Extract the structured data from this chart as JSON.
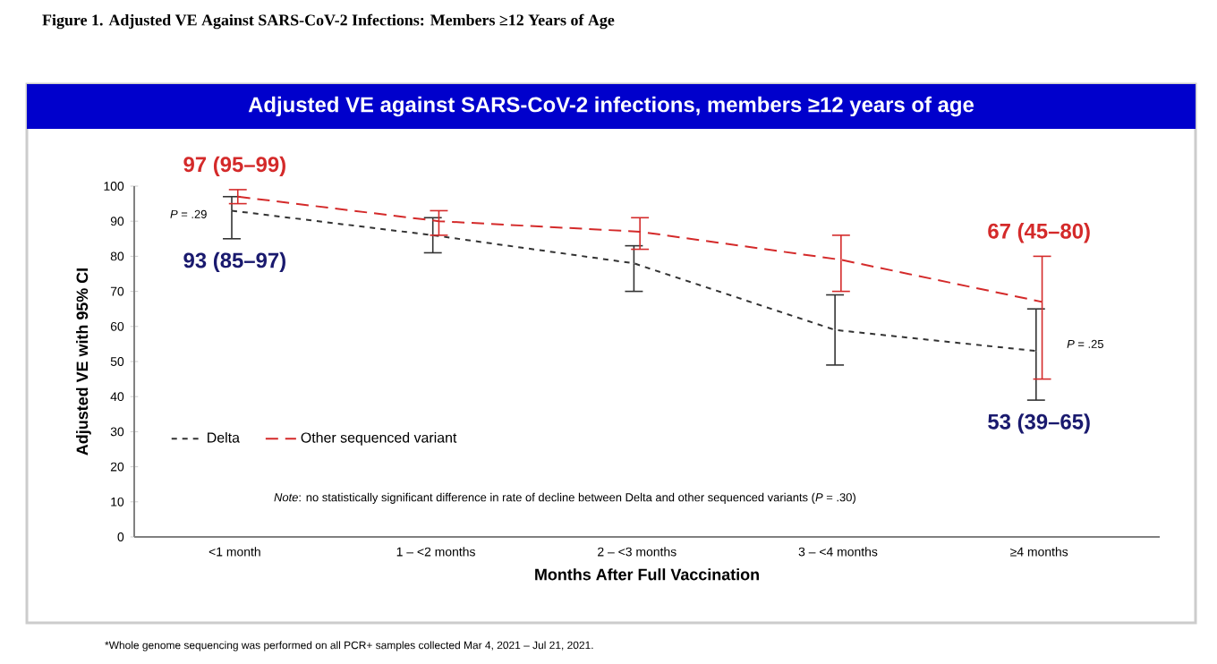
{
  "chart_data": {
    "type": "line",
    "title": "Figure 1.    Adjusted VE Against SARS-CoV-2 Infections:  Members ≥12 Years of Age",
    "subtitle": "Adjusted VE against SARS-CoV-2 infections, members ≥12 years of age",
    "xlabel": "Months After Full Vaccination",
    "ylabel": "Adjusted VE with 95% CI",
    "categories": [
      "<1 month",
      "1 – <2 months",
      "2 – <3 months",
      "3 – <4 months",
      "≥4 months"
    ],
    "series": [
      {
        "name": "Delta",
        "color": "#333333",
        "line_style": "dashed",
        "values": [
          93,
          86,
          78,
          59,
          53
        ],
        "errors": [
          [
            85,
            97
          ],
          [
            81,
            91
          ],
          [
            70,
            83
          ],
          [
            49,
            69
          ],
          [
            39,
            65
          ]
        ],
        "value_labels": [
          "93 (85–97)",
          null,
          null,
          null,
          "53 (39–65)"
        ]
      },
      {
        "name": "Other sequenced variant",
        "color": "#d42a2a",
        "line_style": "dashed",
        "values": [
          97,
          90,
          87,
          79,
          67
        ],
        "errors": [
          [
            95,
            99
          ],
          [
            86,
            93
          ],
          [
            82,
            91
          ],
          [
            70,
            86
          ],
          [
            45,
            80
          ]
        ],
        "value_labels": [
          "97 (95–99)",
          null,
          null,
          null,
          "67 (45–80)"
        ]
      }
    ],
    "ylim": [
      0,
      100
    ],
    "yticks": [
      0,
      10,
      20,
      30,
      40,
      50,
      60,
      70,
      80,
      90,
      100
    ],
    "grid": false,
    "legend": "left",
    "marker": "none",
    "annotations": [
      {
        "text": "*P* = .29",
        "x": "<1 month",
        "y": 92
      },
      {
        "text": "*P* = .25",
        "x": "≥4 months",
        "y": 55
      },
      "*Note*: no statistically significant difference in rate of decline between Delta and other sequenced variants (*P* = .30)",
      "*Whole genome sequencing was performed on all PCR+ samples collected Mar 4, 2021 – Jul 21, 2021."
    ]
  }
}
